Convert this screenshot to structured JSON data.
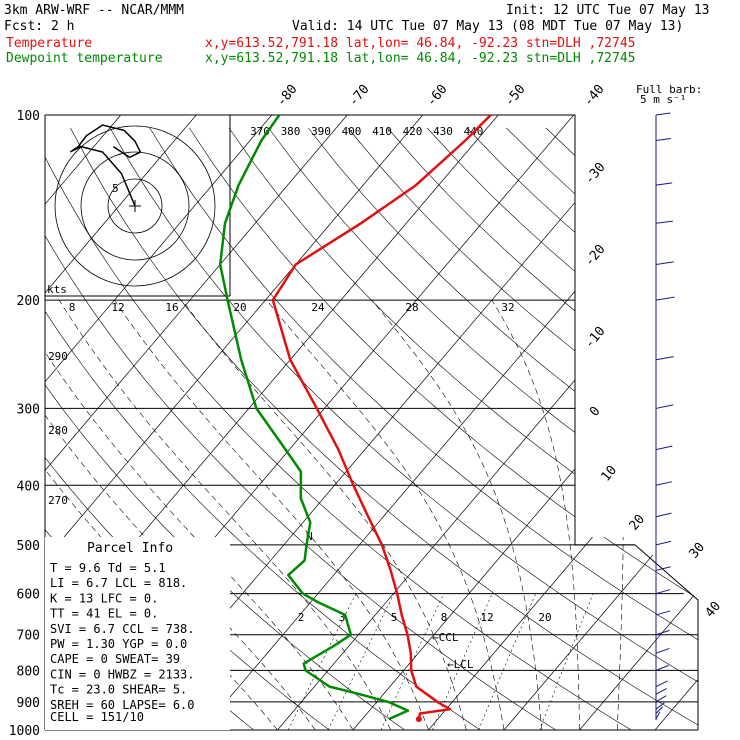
{
  "header": {
    "model": "3km ARW-WRF -- NCAR/MMM",
    "init": "Init: 12 UTC Tue 07 May 13",
    "fcst": "Fcst:     2 h",
    "valid": "Valid: 14 UTC Tue 07 May 13 (08 MDT Tue 07 May 13)"
  },
  "legend": [
    {
      "name": "Temperature",
      "info": "x,y=613.52,791.18   lat,lon= 46.84, -92.23  stn=DLH ,72745",
      "color": "#e01010"
    },
    {
      "name": "Dewpoint temperature",
      "info": "x,y=613.52,791.18   lat,lon= 46.84, -92.23  stn=DLH ,72745",
      "color": "#008a00"
    }
  ],
  "barb_legend": {
    "line1": "Full barb:",
    "line2": "5 m s⁻¹"
  },
  "hodograph": {
    "units": "kts",
    "ring_labels": [
      "5"
    ],
    "trace": [
      [
        0,
        0
      ],
      [
        -5,
        12
      ],
      [
        -12,
        20
      ],
      [
        -20,
        22
      ],
      [
        -24,
        20
      ],
      [
        -21,
        22
      ],
      [
        -18,
        26
      ],
      [
        -12,
        30
      ],
      [
        -4,
        28
      ],
      [
        0,
        24
      ],
      [
        2,
        20
      ],
      [
        -2,
        18
      ],
      [
        -8,
        22
      ]
    ]
  },
  "chart_data": {
    "type": "line",
    "title": "",
    "xlabel": "",
    "ylabel": "",
    "pressure_ticks": [
      100,
      200,
      300,
      400,
      500,
      600,
      700,
      800,
      900,
      1000
    ],
    "isotherm_labels": [
      -80,
      -70,
      -60,
      -50,
      -40,
      -30,
      -20,
      -10,
      0,
      10,
      20,
      30,
      40
    ],
    "theta_labels_top": [
      "370",
      "380",
      "390",
      "400",
      "410",
      "420",
      "430",
      "440"
    ],
    "theta_labels_left": [
      "290",
      "280",
      "270"
    ],
    "mixing_labels_mid": [
      "8",
      "12",
      "16",
      "20",
      "24",
      "28",
      "32"
    ],
    "mixing_labels_low": [
      "2",
      "3",
      "5",
      "8",
      "12",
      "20"
    ],
    "series": [
      {
        "name": "Temperature",
        "color": "#e01010",
        "points": [
          [
            960,
            7.5
          ],
          [
            940,
            7.0
          ],
          [
            925,
            10.5
          ],
          [
            900,
            8.0
          ],
          [
            850,
            3.5
          ],
          [
            800,
            1.0
          ],
          [
            750,
            -1.0
          ],
          [
            700,
            -3.5
          ],
          [
            650,
            -6.5
          ],
          [
            600,
            -9.5
          ],
          [
            550,
            -13.0
          ],
          [
            500,
            -17.0
          ],
          [
            450,
            -22.0
          ],
          [
            400,
            -27.5
          ],
          [
            350,
            -33.5
          ],
          [
            300,
            -41.0
          ],
          [
            250,
            -50.0
          ],
          [
            200,
            -59.0
          ],
          [
            175,
            -60.0
          ],
          [
            150,
            -56.0
          ],
          [
            130,
            -53.0
          ],
          [
            110,
            -51.5
          ],
          [
            100,
            -51.0
          ]
        ]
      },
      {
        "name": "Dewpoint temperature",
        "color": "#008a00",
        "points": [
          [
            960,
            3.5
          ],
          [
            930,
            5.1
          ],
          [
            900,
            1.5
          ],
          [
            870,
            -4.0
          ],
          [
            850,
            -8.0
          ],
          [
            800,
            -13.0
          ],
          [
            780,
            -14.0
          ],
          [
            730,
            -12.0
          ],
          [
            700,
            -11.0
          ],
          [
            650,
            -14.0
          ],
          [
            620,
            -19.0
          ],
          [
            600,
            -22.0
          ],
          [
            560,
            -26.0
          ],
          [
            530,
            -25.5
          ],
          [
            500,
            -27.0
          ],
          [
            460,
            -29.0
          ],
          [
            420,
            -33.0
          ],
          [
            380,
            -36.0
          ],
          [
            350,
            -40.5
          ],
          [
            300,
            -49.0
          ],
          [
            250,
            -56.5
          ],
          [
            200,
            -65.0
          ],
          [
            175,
            -70.0
          ],
          [
            150,
            -74.0
          ],
          [
            130,
            -76.5
          ],
          [
            110,
            -78.5
          ],
          [
            100,
            -79.0
          ]
        ]
      }
    ],
    "annotations": [
      "CCL",
      "LCL",
      "N"
    ]
  },
  "parcel_info": {
    "title": "Parcel Info",
    "rows": [
      [
        "T",
        "9.6",
        "Td",
        "5.1"
      ],
      [
        "LI",
        "6.7",
        "LCL",
        "818."
      ],
      [
        "K",
        "13",
        "LFC",
        "0."
      ],
      [
        "TT",
        "41",
        "EL",
        "0."
      ],
      [
        "SVI",
        "6.7",
        "CCL",
        "738."
      ],
      [
        "PW",
        "1.30",
        "YGP",
        "0.0"
      ],
      [
        "CAPE",
        "0",
        "SWEAT",
        "39"
      ],
      [
        "CIN",
        "0",
        "HWBZ",
        "2133."
      ],
      [
        "Tc",
        "23.0",
        "SHEAR",
        "5."
      ],
      [
        "SREH",
        "60",
        "LAPSE",
        "6.0"
      ]
    ],
    "cell": "CELL = 151/10"
  },
  "wind_barbs": [
    [
      960,
      200,
      3
    ],
    [
      940,
      215,
      4
    ],
    [
      925,
      225,
      5
    ],
    [
      900,
      235,
      6
    ],
    [
      875,
      240,
      6
    ],
    [
      850,
      245,
      7
    ],
    [
      800,
      255,
      8
    ],
    [
      750,
      260,
      9
    ],
    [
      700,
      265,
      9
    ],
    [
      650,
      270,
      10
    ],
    [
      600,
      270,
      11
    ],
    [
      550,
      275,
      12
    ],
    [
      500,
      275,
      13
    ],
    [
      450,
      275,
      14
    ],
    [
      400,
      275,
      15
    ],
    [
      350,
      275,
      16
    ],
    [
      300,
      275,
      18
    ],
    [
      250,
      280,
      20
    ],
    [
      200,
      280,
      22
    ],
    [
      175,
      285,
      21
    ],
    [
      150,
      290,
      20
    ],
    [
      130,
      290,
      18
    ],
    [
      110,
      295,
      16
    ],
    [
      100,
      295,
      15
    ]
  ]
}
